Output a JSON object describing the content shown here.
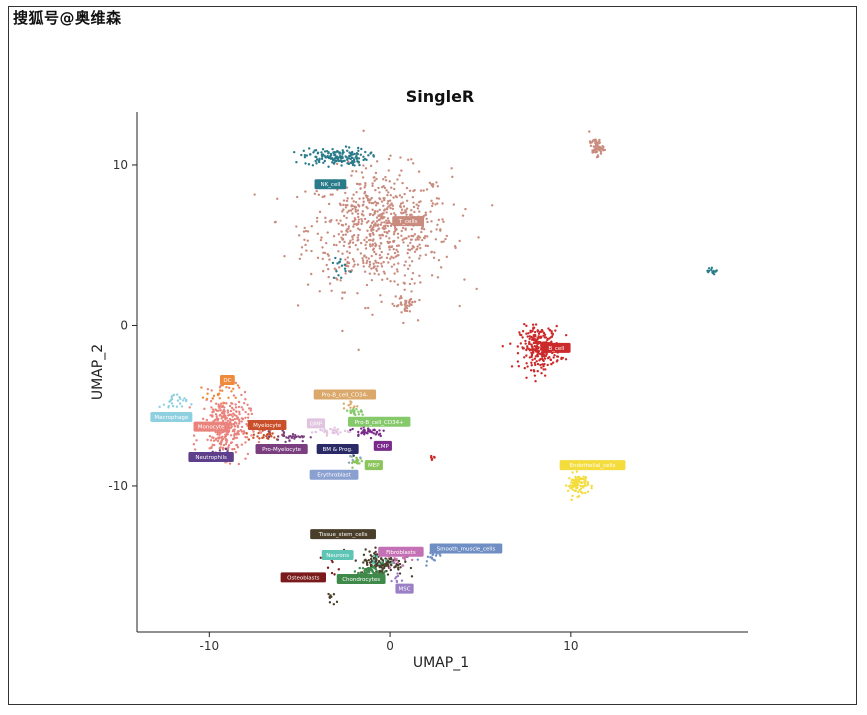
{
  "watermark": "搜狐号@奥维森",
  "chart_data": {
    "type": "scatter",
    "title": "SingleR",
    "xlabel": "UMAP_1",
    "ylabel": "UMAP_2",
    "xlim": [
      -14.0,
      19.8
    ],
    "ylim": [
      -19.1,
      13.3
    ],
    "xticks": [
      -10,
      0,
      10
    ],
    "yticks": [
      10,
      0,
      -10
    ],
    "grid": false,
    "legend": "none (labels placed on clusters)",
    "clusters": [
      {
        "name": "T_cells",
        "color": "#c98b7e",
        "label_at": [
          1.0,
          6.5
        ],
        "center": [
          -0.6,
          6.0
        ],
        "spread": [
          3.6,
          3.4
        ],
        "n": 700
      },
      {
        "name": "NK_cell",
        "color": "#2a7b8a",
        "label_at": [
          -3.3,
          8.8
        ],
        "center": [
          -3.0,
          10.5
        ],
        "spread": [
          1.6,
          0.5
        ],
        "n": 160
      },
      {
        "name": "B_cell",
        "color": "#cc2a2a",
        "label_at": [
          9.2,
          -1.4
        ],
        "center": [
          8.3,
          -1.4
        ],
        "spread": [
          1.0,
          1.2
        ],
        "n": 260
      },
      {
        "name": "Endothelial_cells",
        "color": "#f3dc3c",
        "label_at": [
          11.2,
          -8.7
        ],
        "center": [
          10.4,
          -9.9
        ],
        "spread": [
          0.5,
          0.6
        ],
        "n": 90
      },
      {
        "name": "Monocyte",
        "color": "#e9837c",
        "label_at": [
          -9.9,
          -6.3
        ],
        "center": [
          -9.1,
          -6.3
        ],
        "spread": [
          1.2,
          1.7
        ],
        "n": 320
      },
      {
        "name": "Macrophage",
        "color": "#8fd0e0",
        "label_at": [
          -12.1,
          -5.7
        ],
        "center": [
          -12.0,
          -4.8
        ],
        "spread": [
          0.7,
          0.5
        ],
        "n": 25
      },
      {
        "name": "DC",
        "color": "#ee8a3c",
        "label_at": [
          -9.0,
          -3.4
        ],
        "center": [
          -9.3,
          -4.4
        ],
        "spread": [
          0.8,
          0.6
        ],
        "n": 20
      },
      {
        "name": "Myelocyte",
        "color": "#c9502a",
        "label_at": [
          -6.8,
          -6.2
        ],
        "center": [
          -7.0,
          -6.8
        ],
        "spread": [
          0.9,
          0.4
        ],
        "n": 30
      },
      {
        "name": "Pro-Myelocyte",
        "color": "#7b3f7f",
        "label_at": [
          -6.0,
          -7.7
        ],
        "center": [
          -5.5,
          -6.9
        ],
        "spread": [
          0.9,
          0.3
        ],
        "n": 30
      },
      {
        "name": "Neutrophils",
        "color": "#5e3f8c",
        "label_at": [
          -9.9,
          -8.2
        ],
        "center": [
          -9.4,
          -8.0
        ],
        "spread": [
          0.6,
          0.3
        ],
        "n": 10
      },
      {
        "name": "Pro-B_cell_CD34-",
        "color": "#d9a86a",
        "label_at": [
          -2.5,
          -4.3
        ],
        "center": [
          -2.2,
          -5.0
        ],
        "spread": [
          0.4,
          0.3
        ],
        "n": 10
      },
      {
        "name": "GMP",
        "color": "#e0c4e0",
        "label_at": [
          -4.1,
          -6.1
        ],
        "center": [
          -3.3,
          -6.6
        ],
        "spread": [
          1.0,
          0.2
        ],
        "n": 30
      },
      {
        "name": "Pro-B_cell_CD34+",
        "color": "#85c96a",
        "label_at": [
          -0.6,
          -6.0
        ],
        "center": [
          -1.8,
          -5.4
        ],
        "spread": [
          0.4,
          0.3
        ],
        "n": 20
      },
      {
        "name": "BM & Prog.",
        "color": "#2a2a66",
        "label_at": [
          -2.9,
          -7.7
        ],
        "center": [
          -2.2,
          -7.8
        ],
        "spread": [
          0.3,
          0.3
        ],
        "n": 12
      },
      {
        "name": "CMP",
        "color": "#7a2a8a",
        "label_at": [
          -0.4,
          -7.5
        ],
        "center": [
          -1.2,
          -6.6
        ],
        "spread": [
          0.9,
          0.3
        ],
        "n": 40
      },
      {
        "name": "MEP",
        "color": "#8ac45a",
        "label_at": [
          -0.9,
          -8.7
        ],
        "center": [
          -1.8,
          -8.5
        ],
        "spread": [
          0.3,
          0.3
        ],
        "n": 20
      },
      {
        "name": "Erythroblast",
        "color": "#8aa0d0",
        "label_at": [
          -3.1,
          -9.3
        ],
        "center": [
          -2.0,
          -8.2
        ],
        "spread": [
          0.3,
          0.3
        ],
        "n": 5
      },
      {
        "name": "Tissue_stem_cells",
        "color": "#4a3f2a",
        "label_at": [
          -2.6,
          -13.0
        ],
        "center": [
          -0.5,
          -14.8
        ],
        "spread": [
          1.1,
          0.7
        ],
        "n": 150
      },
      {
        "name": "Neurons",
        "color": "#5ec4b4",
        "label_at": [
          -2.9,
          -14.3
        ],
        "center": [
          -0.8,
          -14.8
        ],
        "spread": [
          0.8,
          0.6
        ],
        "n": 15
      },
      {
        "name": "Fibroblasts",
        "color": "#c470b4",
        "label_at": [
          0.6,
          -14.1
        ],
        "center": [
          0.5,
          -14.6
        ],
        "spread": [
          0.5,
          0.5
        ],
        "n": 15
      },
      {
        "name": "Smooth_muscle_cells",
        "color": "#6f8fc4",
        "label_at": [
          4.2,
          -13.9
        ],
        "center": [
          2.3,
          -14.3
        ],
        "spread": [
          0.5,
          0.4
        ],
        "n": 20
      },
      {
        "name": "Osteoblasts",
        "color": "#7a1a1a",
        "label_at": [
          -4.8,
          -15.7
        ],
        "center": [
          -3.3,
          -14.9
        ],
        "spread": [
          0.4,
          0.5
        ],
        "n": 10
      },
      {
        "name": "Chondrocytes",
        "color": "#3f8a4a",
        "label_at": [
          -1.6,
          -15.8
        ],
        "center": [
          -1.0,
          -15.4
        ],
        "spread": [
          0.7,
          0.4
        ],
        "n": 60
      },
      {
        "name": "MSC",
        "color": "#9a7fc4",
        "label_at": [
          0.8,
          -16.4
        ],
        "center": [
          0.3,
          -15.8
        ],
        "spread": [
          0.4,
          0.3
        ],
        "n": 8
      }
    ],
    "extra_groups": [
      {
        "name": "T_cells",
        "color": "#c98b7e",
        "center": [
          11.4,
          11.1
        ],
        "spread": [
          0.35,
          0.5
        ],
        "n": 60
      },
      {
        "name": "NK_cell",
        "color": "#2a7b8a",
        "center": [
          17.9,
          3.4
        ],
        "spread": [
          0.3,
          0.15
        ],
        "n": 15
      },
      {
        "name": "NK_cell",
        "color": "#2a7b8a",
        "center": [
          -2.8,
          3.5
        ],
        "spread": [
          0.4,
          0.7
        ],
        "n": 15
      },
      {
        "name": "T_cells",
        "color": "#c98b7e",
        "center": [
          0.8,
          1.3
        ],
        "spread": [
          0.6,
          0.7
        ],
        "n": 40
      },
      {
        "name": "Tissue_stem_cells",
        "color": "#4a3f2a",
        "center": [
          -3.3,
          -17.0
        ],
        "spread": [
          0.2,
          0.4
        ],
        "n": 10
      },
      {
        "name": "B_cell",
        "color": "#cc2a2a",
        "center": [
          2.3,
          -8.2
        ],
        "spread": [
          0.15,
          0.15
        ],
        "n": 6
      }
    ]
  }
}
